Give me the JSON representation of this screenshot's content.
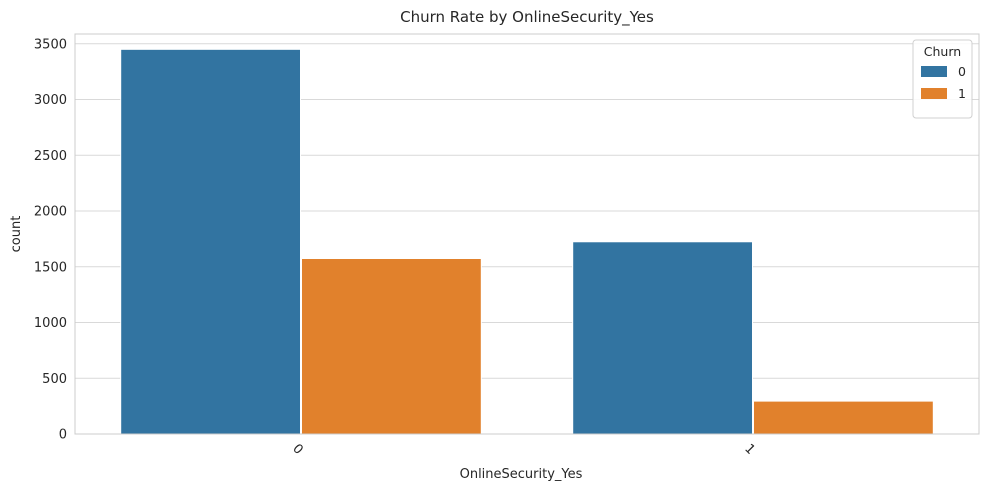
{
  "chart_data": {
    "type": "bar",
    "title": "Churn Rate by OnlineSecurity_Yes",
    "xlabel": "OnlineSecurity_Yes",
    "ylabel": "count",
    "categories": [
      "0",
      "1"
    ],
    "series": [
      {
        "name": "0",
        "values": [
          3450,
          1724
        ],
        "color": "#3274a1"
      },
      {
        "name": "1",
        "values": [
          1574,
          295
        ],
        "color": "#e1812c"
      }
    ],
    "ylim": [
      0,
      3500
    ],
    "yticks": [
      0,
      500,
      1000,
      1500,
      2000,
      2500,
      3000,
      3500
    ],
    "grid": true,
    "legend": {
      "title": "Churn",
      "placement": "top-right"
    }
  }
}
